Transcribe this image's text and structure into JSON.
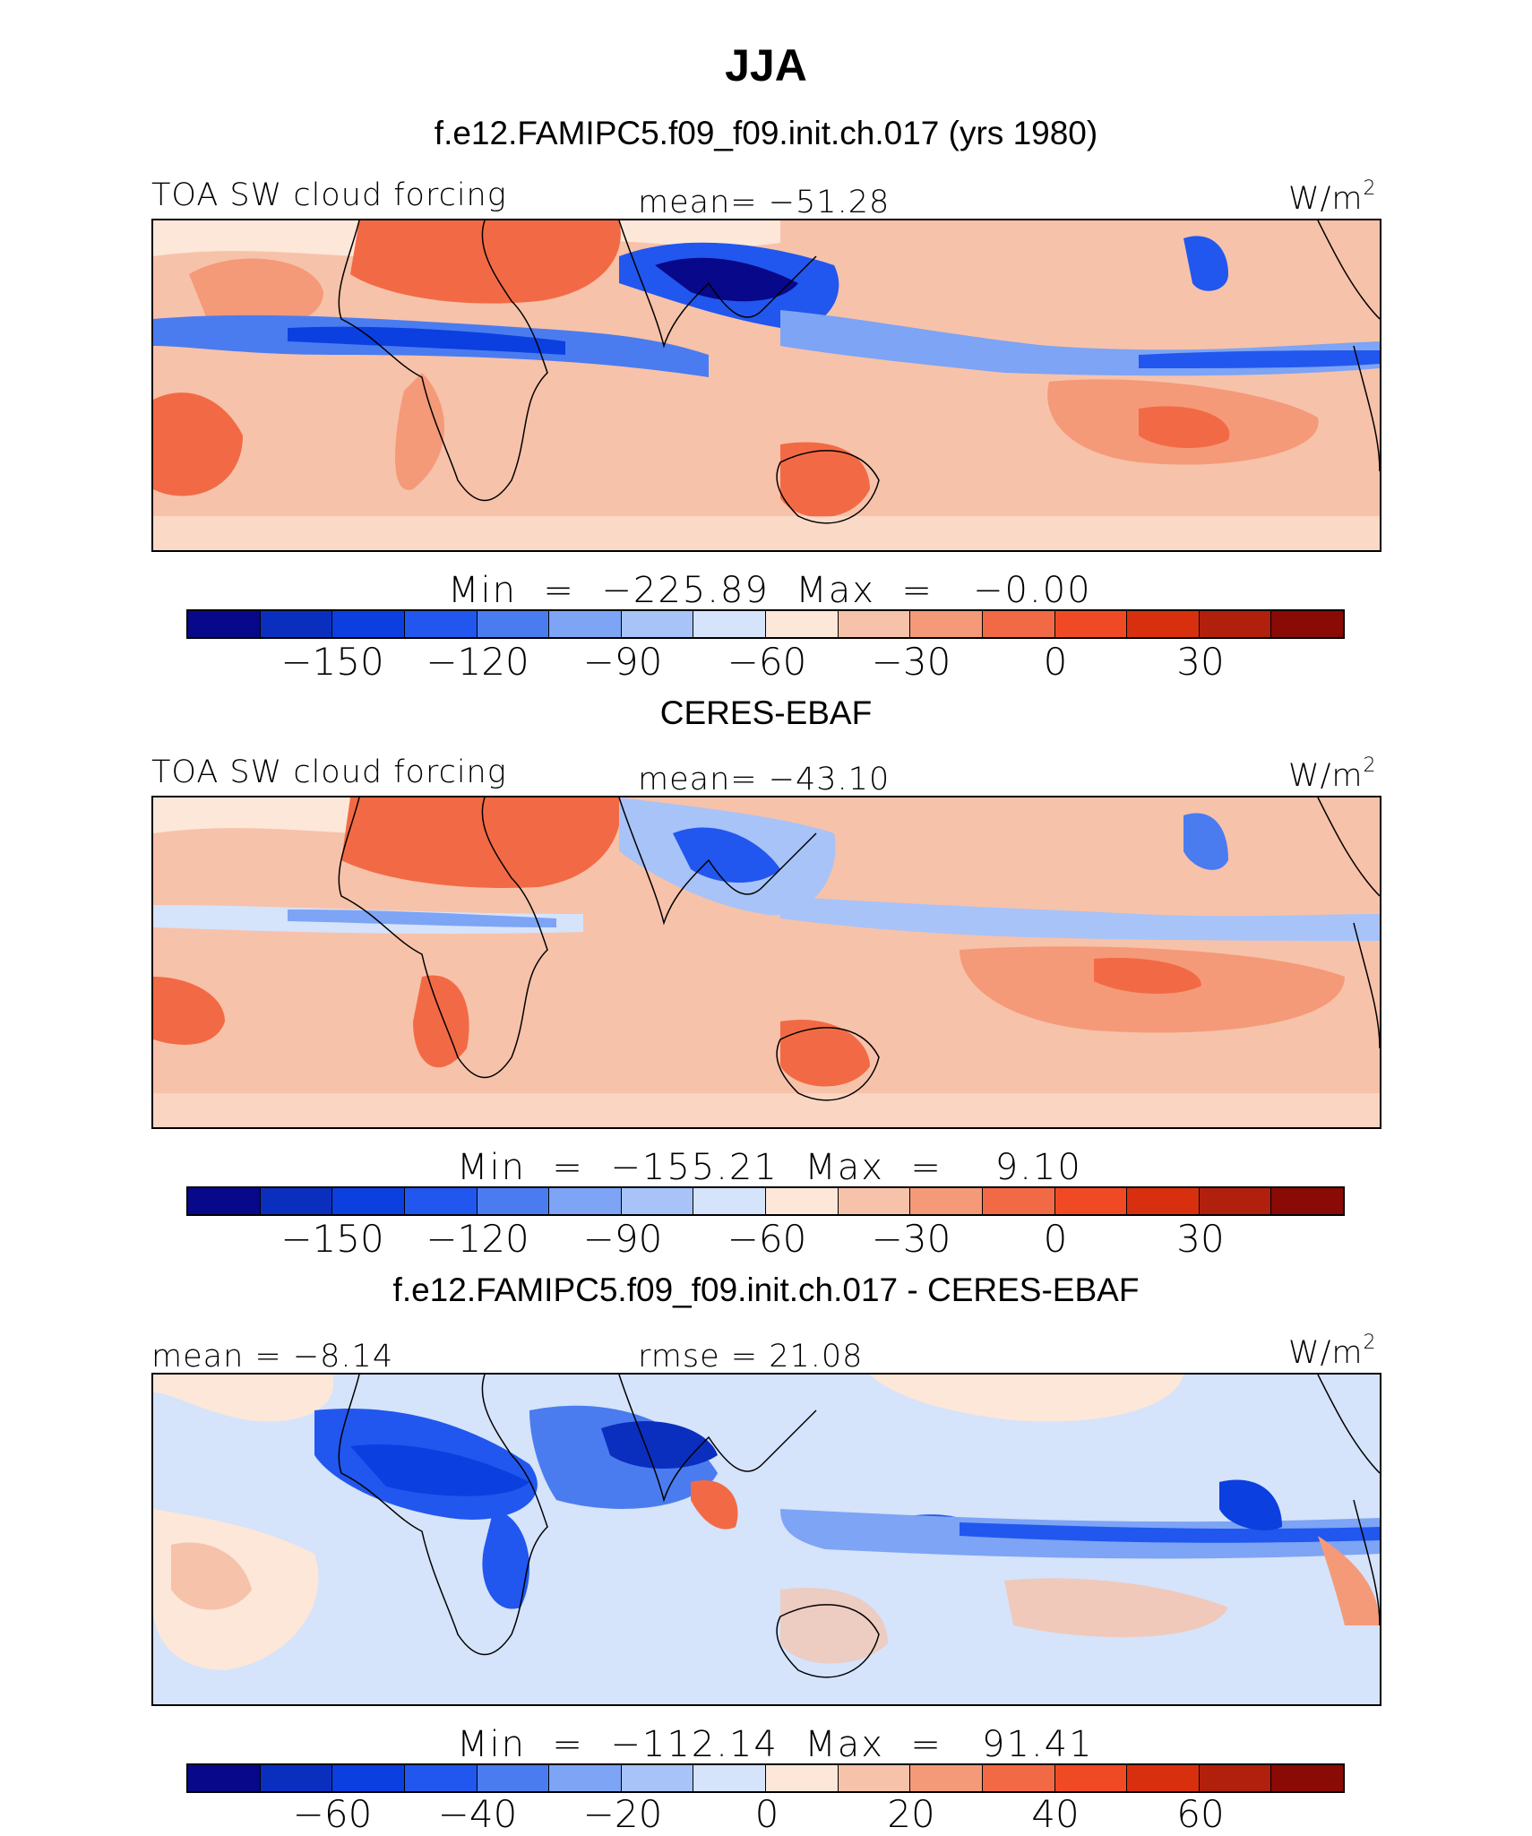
{
  "title": "JJA",
  "colors": {
    "levels": [
      "#08088a",
      "#0a2fbf",
      "#0c3fe0",
      "#2157ee",
      "#4a7cf0",
      "#7da4f5",
      "#a8c3f8",
      "#d5e3fb",
      "#fce7d9",
      "#f7c2aa",
      "#f49a79",
      "#f26a45",
      "#f04a25",
      "#d8300f",
      "#b0200c",
      "#8a0a05"
    ]
  },
  "panels": [
    {
      "id": "model",
      "heading": "f.e12.FAMIPC5.f09_f09.init.ch.017 (yrs 1980)",
      "left_label": "TOA SW cloud forcing",
      "center_label": "mean= −51.28",
      "units_base": "W/m",
      "units_exp": "2",
      "minmax": "Min  =  −225.89  Max  =   −0.00",
      "ticks": [
        "−150",
        "−120",
        "−90",
        "−60",
        "−30",
        "0",
        "30"
      ]
    },
    {
      "id": "obs",
      "heading": "CERES-EBAF",
      "left_label": "TOA SW cloud forcing",
      "center_label": "mean= −43.10",
      "units_base": "W/m",
      "units_exp": "2",
      "minmax": "Min  =  −155.21  Max  =    9.10",
      "ticks": [
        "−150",
        "−120",
        "−90",
        "−60",
        "−30",
        "0",
        "30"
      ]
    },
    {
      "id": "diff",
      "heading": "f.e12.FAMIPC5.f09_f09.init.ch.017 - CERES-EBAF",
      "left_label": "mean  =   −8.14",
      "center_label": "rmse  =   21.08",
      "units_base": "W/m",
      "units_exp": "2",
      "minmax": "Min  =  −112.14  Max  =   91.41",
      "ticks": [
        "−60",
        "−40",
        "−20",
        "0",
        "20",
        "40",
        "60"
      ]
    }
  ],
  "chart_data": [
    {
      "type": "heatmap",
      "title": "f.e12.FAMIPC5.f09_f09.init.ch.017 (yrs 1980)",
      "variable": "TOA SW cloud forcing",
      "units": "W/m2",
      "mean": -51.28,
      "min": -225.89,
      "max": -0.0,
      "colorbar_levels": [
        -165,
        -150,
        -135,
        -120,
        -105,
        -90,
        -75,
        -60,
        -45,
        -30,
        -15,
        0,
        15,
        30,
        45
      ],
      "colorbar_tick_values": [
        -150,
        -120,
        -90,
        -60,
        -30,
        0,
        30
      ]
    },
    {
      "type": "heatmap",
      "title": "CERES-EBAF",
      "variable": "TOA SW cloud forcing",
      "units": "W/m2",
      "mean": -43.1,
      "min": -155.21,
      "max": 9.1,
      "colorbar_levels": [
        -165,
        -150,
        -135,
        -120,
        -105,
        -90,
        -75,
        -60,
        -45,
        -30,
        -15,
        0,
        15,
        30,
        45
      ],
      "colorbar_tick_values": [
        -150,
        -120,
        -90,
        -60,
        -30,
        0,
        30
      ]
    },
    {
      "type": "heatmap",
      "title": "f.e12.FAMIPC5.f09_f09.init.ch.017 - CERES-EBAF",
      "units": "W/m2",
      "mean": -8.14,
      "rmse": 21.08,
      "min": -112.14,
      "max": 91.41,
      "colorbar_levels": [
        -70,
        -60,
        -50,
        -40,
        -30,
        -20,
        -10,
        0,
        10,
        20,
        30,
        40,
        50,
        60,
        70
      ],
      "colorbar_tick_values": [
        -60,
        -40,
        -20,
        0,
        20,
        40,
        60
      ]
    }
  ]
}
